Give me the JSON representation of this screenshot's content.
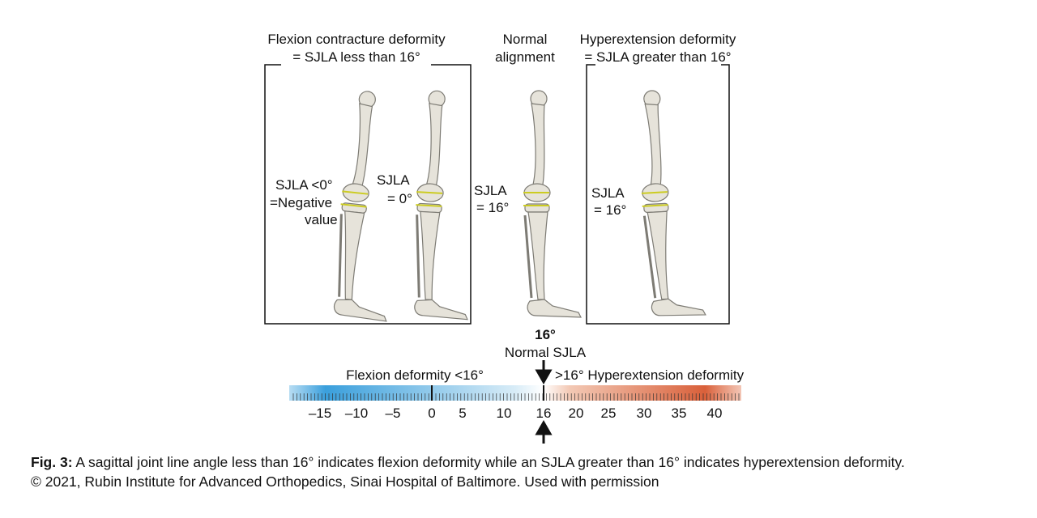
{
  "flexion_panel": {
    "title_line1": "Flexion contracture deformity",
    "title_line2": "= SJLA less than 16°",
    "label1": "SJLA <0°",
    "label2": "=Negative",
    "label3": "value",
    "label4": "SJLA",
    "label5": "= 0°"
  },
  "normal_panel": {
    "title_line1": "Normal",
    "title_line2": "alignment",
    "label1": "SJLA",
    "label2": "= 16°"
  },
  "hyperextension_panel": {
    "title_line1": "Hyperextension deformity",
    "title_line2": "= SJLA greater than 16°",
    "label1": "SJLA",
    "label2": "= 16°"
  },
  "scale": {
    "normal_value": "16°",
    "normal_label": "Normal SJLA",
    "left_label": "Flexion deformity <16°",
    "right_label": ">16° Hyperextension deformity",
    "ticks": [
      "–15",
      "–10",
      "–5",
      "0",
      "5",
      "10",
      "16",
      "20",
      "25",
      "30",
      "35",
      "40"
    ]
  },
  "caption": {
    "label": "Fig. 3:",
    "text": " A sagittal joint line angle less than 16° indicates flexion deformity while an SJLA greater than 16° indicates hyperextension deformity.",
    "credit": "© 2021, Rubin Institute for Advanced Orthopedics, Sinai Hospital of Baltimore. Used with permission"
  }
}
